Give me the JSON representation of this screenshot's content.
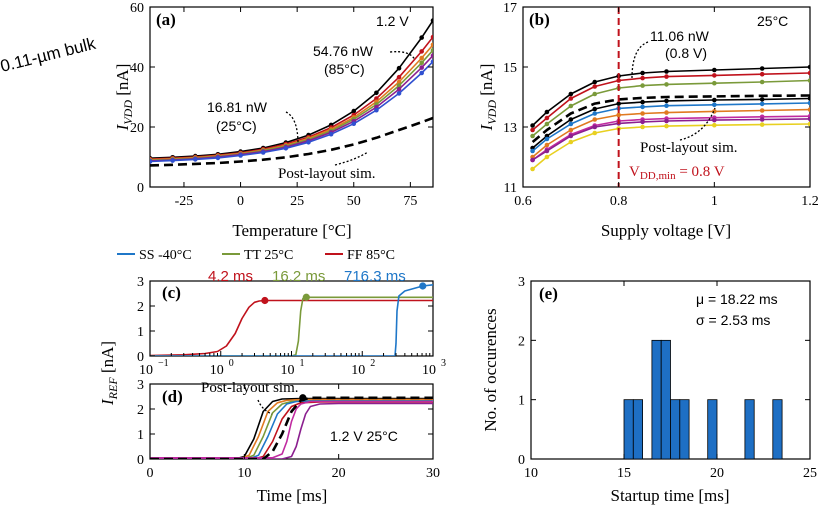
{
  "colors": {
    "ss": "#1f77c8",
    "tt": "#7a9a3a",
    "ff": "#c0121c",
    "black": "#000000",
    "yellow": "#e8d020",
    "purple": "#8b1f8f",
    "magenta": "#c02aa0",
    "orange": "#e07a20",
    "blue2": "#3050d0",
    "gray": "#888888",
    "bar": "#1e6fc4"
  },
  "side_label": "0.11-µm bulk",
  "chart_data": [
    {
      "id": "a",
      "type": "line",
      "panel_label": "(a)",
      "xlabel": "Temperature [°C]",
      "ylabel_main": "I",
      "ylabel_sub": "VDD",
      "ylabel_unit": " [nA]",
      "xlim": [
        -40,
        85
      ],
      "ylim": [
        0,
        60
      ],
      "xticks": [
        -25,
        0,
        25,
        50,
        75
      ],
      "yticks": [
        0,
        20,
        40,
        60
      ],
      "annotations": [
        "1.2 V",
        "54.76 nW",
        "(85°C)",
        "16.81 nW",
        "(25°C)",
        "Post-layout sim."
      ],
      "series": [
        {
          "name": "upper",
          "color": "black",
          "x": [
            -40,
            -30,
            -20,
            -10,
            0,
            10,
            20,
            30,
            40,
            50,
            60,
            70,
            80,
            85
          ],
          "y": [
            9.6,
            9.9,
            10.3,
            10.9,
            11.8,
            13.0,
            14.8,
            17.3,
            20.7,
            25.3,
            31.4,
            39.6,
            49.8,
            55.5
          ]
        },
        {
          "name": "c2",
          "color": "ff",
          "x": [
            -40,
            -30,
            -20,
            -10,
            0,
            10,
            20,
            30,
            40,
            50,
            60,
            70,
            80,
            85
          ],
          "y": [
            9.3,
            9.6,
            10.0,
            10.6,
            11.4,
            12.6,
            14.3,
            16.6,
            19.8,
            24.0,
            29.5,
            36.6,
            45.2,
            50.0
          ]
        },
        {
          "name": "c3",
          "color": "orange",
          "x": [
            -40,
            -30,
            -20,
            -10,
            0,
            10,
            20,
            30,
            40,
            50,
            60,
            70,
            80,
            85
          ],
          "y": [
            9.1,
            9.4,
            9.8,
            10.4,
            11.2,
            12.3,
            13.9,
            16.2,
            19.2,
            23.2,
            28.4,
            35.0,
            43.0,
            47.4
          ]
        },
        {
          "name": "c4",
          "color": "tt",
          "x": [
            -40,
            -30,
            -20,
            -10,
            0,
            10,
            20,
            30,
            40,
            50,
            60,
            70,
            80,
            85
          ],
          "y": [
            8.9,
            9.2,
            9.6,
            10.2,
            11.0,
            12.1,
            13.6,
            15.8,
            18.7,
            22.6,
            27.5,
            33.8,
            41.4,
            45.6
          ]
        },
        {
          "name": "c5",
          "color": "purple",
          "x": [
            -40,
            -30,
            -20,
            -10,
            0,
            10,
            20,
            30,
            40,
            50,
            60,
            70,
            80,
            85
          ],
          "y": [
            8.7,
            9.0,
            9.4,
            10.0,
            10.8,
            11.8,
            13.3,
            15.4,
            18.2,
            21.9,
            26.6,
            32.6,
            39.8,
            43.8
          ]
        },
        {
          "name": "c6",
          "color": "blue2",
          "x": [
            -40,
            -30,
            -20,
            -10,
            0,
            10,
            20,
            30,
            40,
            50,
            60,
            70,
            80,
            85
          ],
          "y": [
            8.5,
            8.8,
            9.2,
            9.7,
            10.5,
            11.5,
            12.9,
            14.9,
            17.6,
            21.1,
            25.6,
            31.2,
            38.0,
            41.8
          ]
        },
        {
          "name": "Post-layout sim.",
          "color": "black",
          "dashed": true,
          "x": [
            -40,
            -30,
            -20,
            -10,
            0,
            10,
            20,
            30,
            40,
            50,
            60,
            70,
            80,
            85
          ],
          "y": [
            7.2,
            7.4,
            7.7,
            8.0,
            8.5,
            9.1,
            9.9,
            11.0,
            12.4,
            14.2,
            16.4,
            19.0,
            21.6,
            23.0
          ]
        }
      ]
    },
    {
      "id": "b",
      "type": "line",
      "panel_label": "(b)",
      "xlabel": "Supply voltage [V]",
      "ylabel_main": "I",
      "ylabel_sub": "VDD",
      "ylabel_unit": " [nA]",
      "xlim": [
        0.6,
        1.2
      ],
      "ylim": [
        11,
        17
      ],
      "xticks": [
        0.6,
        0.8,
        1.0,
        1.2
      ],
      "xtick_labels": [
        "0.6",
        "0.8",
        "1",
        "1.2"
      ],
      "yticks": [
        11,
        13,
        15,
        17
      ],
      "annotations": [
        "25°C",
        "11.06 nW",
        "(0.8 V)",
        "Post-layout sim.",
        "V",
        "DD,min",
        " = 0.8 V"
      ],
      "vline_x": 0.8,
      "series": [
        {
          "name": "s1",
          "color": "black",
          "x": [
            0.62,
            0.65,
            0.7,
            0.75,
            0.8,
            0.85,
            0.9,
            1.0,
            1.1,
            1.2
          ],
          "y": [
            13.05,
            13.5,
            14.1,
            14.5,
            14.7,
            14.8,
            14.85,
            14.9,
            14.95,
            15.0
          ]
        },
        {
          "name": "s2",
          "color": "ff",
          "x": [
            0.62,
            0.65,
            0.7,
            0.75,
            0.8,
            0.85,
            0.9,
            1.0,
            1.1,
            1.2
          ],
          "y": [
            12.9,
            13.3,
            13.95,
            14.35,
            14.55,
            14.63,
            14.68,
            14.72,
            14.76,
            14.8
          ]
        },
        {
          "name": "s3",
          "color": "tt",
          "x": [
            0.62,
            0.65,
            0.7,
            0.75,
            0.8,
            0.85,
            0.9,
            1.0,
            1.1,
            1.2
          ],
          "y": [
            12.7,
            13.1,
            13.7,
            14.1,
            14.3,
            14.38,
            14.42,
            14.46,
            14.5,
            14.55
          ]
        },
        {
          "name": "s4",
          "color": "black",
          "x": [
            0.62,
            0.65,
            0.7,
            0.75,
            0.8,
            0.85,
            0.9,
            1.0,
            1.1,
            1.2
          ],
          "y": [
            12.3,
            12.7,
            13.25,
            13.6,
            13.78,
            13.83,
            13.87,
            13.9,
            13.92,
            13.95
          ]
        },
        {
          "name": "s5",
          "color": "ss",
          "x": [
            0.62,
            0.65,
            0.7,
            0.75,
            0.8,
            0.85,
            0.9,
            1.0,
            1.1,
            1.2
          ],
          "y": [
            12.2,
            12.6,
            13.1,
            13.45,
            13.62,
            13.67,
            13.71,
            13.74,
            13.77,
            13.8
          ]
        },
        {
          "name": "s6",
          "color": "orange",
          "x": [
            0.62,
            0.65,
            0.7,
            0.75,
            0.8,
            0.85,
            0.9,
            1.0,
            1.1,
            1.2
          ],
          "y": [
            12.0,
            12.4,
            12.9,
            13.25,
            13.4,
            13.45,
            13.48,
            13.52,
            13.55,
            13.58
          ]
        },
        {
          "name": "s7",
          "color": "magenta",
          "x": [
            0.62,
            0.65,
            0.7,
            0.75,
            0.8,
            0.85,
            0.9,
            1.0,
            1.1,
            1.2
          ],
          "y": [
            11.9,
            12.25,
            12.75,
            13.05,
            13.2,
            13.25,
            13.28,
            13.31,
            13.34,
            13.36
          ]
        },
        {
          "name": "s8",
          "color": "purple",
          "x": [
            0.62,
            0.65,
            0.7,
            0.75,
            0.8,
            0.85,
            0.9,
            1.0,
            1.1,
            1.2
          ],
          "y": [
            11.9,
            12.2,
            12.7,
            13.0,
            13.12,
            13.17,
            13.2,
            13.23,
            13.25,
            13.27
          ]
        },
        {
          "name": "s9",
          "color": "yellow",
          "x": [
            0.62,
            0.65,
            0.7,
            0.75,
            0.8,
            0.85,
            0.9,
            1.0,
            1.1,
            1.2
          ],
          "y": [
            11.6,
            12.0,
            12.5,
            12.8,
            12.95,
            13.0,
            13.03,
            13.06,
            13.08,
            13.1
          ]
        },
        {
          "name": "Post-layout sim.",
          "color": "black",
          "dashed": true,
          "x": [
            0.62,
            0.65,
            0.7,
            0.75,
            0.8,
            0.85,
            0.9,
            1.0,
            1.1,
            1.2
          ],
          "y": [
            12.5,
            12.9,
            13.45,
            13.78,
            13.92,
            13.97,
            14.0,
            14.02,
            14.04,
            14.05
          ]
        }
      ]
    },
    {
      "id": "c",
      "type": "line",
      "panel_label": "(c)",
      "xscale": "log",
      "xlim": [
        0.1,
        1000
      ],
      "ylim": [
        0,
        3
      ],
      "yticks": [
        0,
        1,
        2,
        3
      ],
      "xtick_labels": [
        "10",
        "10",
        "10",
        "10",
        "10"
      ],
      "xtick_exps": [
        "−1",
        "0",
        "1",
        "2",
        "3"
      ],
      "legend": [
        "SS -40°C",
        "TT 25°C",
        "FF 85°C"
      ],
      "annotations": [
        "4.2 ms",
        "16.2 ms",
        "716.3 ms"
      ],
      "series": [
        {
          "name": "FF 85°C",
          "color": "ff",
          "marker_x": 4.2,
          "x": [
            0.1,
            0.3,
            0.6,
            0.9,
            1.2,
            1.6,
            2.0,
            2.5,
            3.0,
            3.5,
            4.2,
            6,
            10,
            100,
            1000
          ],
          "y": [
            0.02,
            0.05,
            0.1,
            0.18,
            0.4,
            0.9,
            1.5,
            1.95,
            2.15,
            2.2,
            2.22,
            2.22,
            2.22,
            2.22,
            2.22
          ]
        },
        {
          "name": "TT 25°C",
          "color": "tt",
          "marker_x": 16.2,
          "x": [
            0.1,
            1,
            10,
            11.5,
            12.5,
            13.5,
            14.5,
            16.2,
            30,
            100,
            1000
          ],
          "y": [
            0,
            0,
            0,
            0.05,
            0.6,
            1.8,
            2.3,
            2.35,
            2.35,
            2.35,
            2.35
          ]
        },
        {
          "name": "SS -40°C",
          "color": "ss",
          "marker_x": 716.3,
          "x": [
            0.1,
            10,
            100,
            290,
            300,
            310,
            330,
            400,
            716.3,
            1000
          ],
          "y": [
            0,
            0,
            0,
            0,
            0.5,
            1.8,
            2.4,
            2.6,
            2.8,
            2.85
          ]
        }
      ]
    },
    {
      "id": "d",
      "type": "line",
      "panel_label": "(d)",
      "xlabel": "Time [ms]",
      "xlim": [
        0,
        30
      ],
      "ylim": [
        0,
        3
      ],
      "xticks": [
        0,
        10,
        20,
        30
      ],
      "yticks": [
        0,
        1,
        2,
        3
      ],
      "shared_ylabel_main": "I",
      "shared_ylabel_sub": "REF",
      "shared_ylabel_unit": " [nA]",
      "annotations": [
        "Post-layout sim.",
        "1.2 V 25°C"
      ],
      "series": [
        {
          "name": "d1",
          "color": "black",
          "x": [
            0,
            9,
            10,
            11,
            12,
            13,
            14,
            16,
            20,
            30
          ],
          "y": [
            0,
            0,
            0.1,
            0.8,
            1.9,
            2.3,
            2.4,
            2.42,
            2.42,
            2.42
          ]
        },
        {
          "name": "d2",
          "color": "orange",
          "x": [
            0,
            9.5,
            10.5,
            11.5,
            12.5,
            13.5,
            14.5,
            16,
            20,
            30
          ],
          "y": [
            0,
            0,
            0.15,
            0.9,
            1.9,
            2.25,
            2.35,
            2.38,
            2.38,
            2.38
          ]
        },
        {
          "name": "d3",
          "color": "tt",
          "x": [
            0,
            10,
            11,
            12,
            13,
            14,
            15,
            17,
            20,
            30
          ],
          "y": [
            0,
            0,
            0.15,
            0.9,
            1.85,
            2.2,
            2.3,
            2.33,
            2.33,
            2.33
          ]
        },
        {
          "name": "d4",
          "color": "ss",
          "x": [
            0,
            10.5,
            11.5,
            12.5,
            13.5,
            14.5,
            15.5,
            17,
            20,
            30
          ],
          "y": [
            0,
            0,
            0.15,
            0.9,
            1.8,
            2.2,
            2.3,
            2.32,
            2.32,
            2.32
          ]
        },
        {
          "name": "d5",
          "color": "ff",
          "x": [
            0,
            11,
            12,
            13,
            14,
            15,
            16,
            18,
            20,
            30
          ],
          "y": [
            0,
            0,
            0.1,
            0.7,
            1.6,
            2.1,
            2.25,
            2.28,
            2.28,
            2.28
          ]
        },
        {
          "name": "d6",
          "color": "purple",
          "x": [
            0,
            14,
            15,
            15.5,
            16,
            16.5,
            17,
            18,
            20,
            30
          ],
          "y": [
            0,
            0,
            0.1,
            0.5,
            1.2,
            1.8,
            2.1,
            2.2,
            2.22,
            2.22
          ]
        },
        {
          "name": "d7",
          "color": "magenta",
          "x": [
            0,
            13,
            14,
            14.5,
            15,
            15.5,
            16,
            17,
            20,
            30
          ],
          "y": [
            0.05,
            0.05,
            0.2,
            0.7,
            1.5,
            2.0,
            2.2,
            2.3,
            2.3,
            2.3
          ]
        },
        {
          "name": "Post-layout sim.",
          "color": "black",
          "dashed": true,
          "marker_x": 16.2,
          "x": [
            0,
            12,
            13,
            14,
            15,
            16,
            17,
            18,
            20,
            30
          ],
          "y": [
            0,
            0,
            0.3,
            1.0,
            1.9,
            2.35,
            2.45,
            2.45,
            2.45,
            2.45
          ]
        }
      ]
    },
    {
      "id": "e",
      "type": "bar",
      "panel_label": "(e)",
      "xlabel": "Startup time [ms]",
      "ylabel": "No. of occurences",
      "xlim": [
        10,
        25
      ],
      "ylim": [
        0,
        3
      ],
      "xticks": [
        10,
        15,
        20,
        25
      ],
      "yticks": [
        0,
        1,
        2,
        3
      ],
      "annotations": [
        "μ = 18.22 ms",
        "σ = 2.53 ms"
      ],
      "bin_width": 0.5,
      "bins": [
        {
          "start": 15.0,
          "count": 1
        },
        {
          "start": 15.5,
          "count": 1
        },
        {
          "start": 16.5,
          "count": 2
        },
        {
          "start": 17.0,
          "count": 2
        },
        {
          "start": 17.5,
          "count": 1
        },
        {
          "start": 18.0,
          "count": 1
        },
        {
          "start": 19.5,
          "count": 1
        },
        {
          "start": 21.5,
          "count": 1
        },
        {
          "start": 23.0,
          "count": 1
        }
      ]
    }
  ]
}
